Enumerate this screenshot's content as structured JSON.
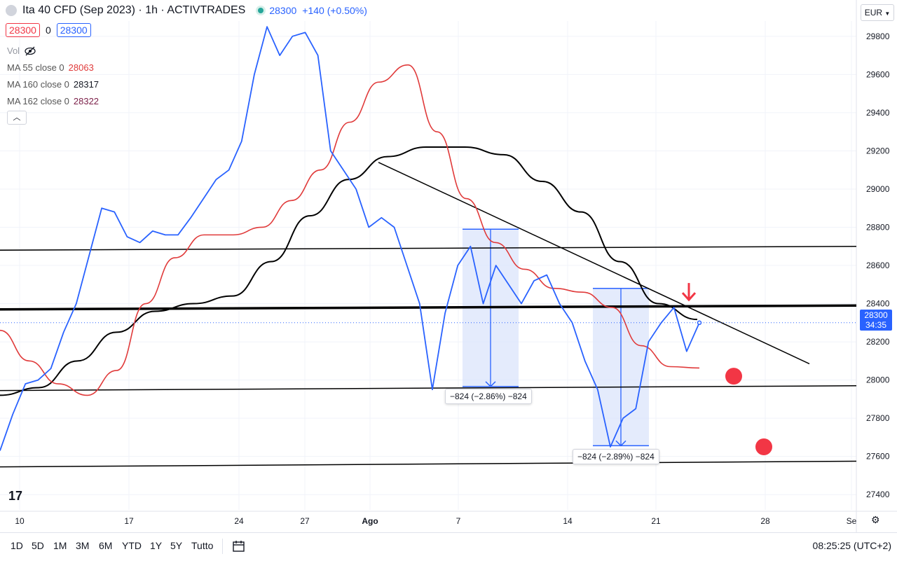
{
  "header": {
    "title": "Ita 40 CFD (Sep 2023) · 1h · ACTIVTRADES",
    "last_price": "28300",
    "change": "+140 (+0.50%)",
    "bid": "28300",
    "spread": "0",
    "ask": "28300"
  },
  "indicators": {
    "vol_label": "Vol",
    "ma55": {
      "label": "MA 55 close 0",
      "value": "28063",
      "color": "#e03a3a"
    },
    "ma160": {
      "label": "MA 160 close 0",
      "value": "28317",
      "color": "#131722"
    },
    "ma162": {
      "label": "MA 162 close 0",
      "value": "28322",
      "color": "#7b1f48"
    }
  },
  "currency": "EUR",
  "price_tag": {
    "price": "28300",
    "countdown": "34:35"
  },
  "measurements": [
    {
      "text": "−824 (−2.86%) −824"
    },
    {
      "text": "−824 (−2.89%) −824"
    }
  ],
  "bottombar": {
    "ranges": [
      "1D",
      "5D",
      "1M",
      "3M",
      "6M",
      "YTD",
      "1Y",
      "5Y",
      "Tutto"
    ],
    "clock": "08:25:25 (UTC+2)"
  },
  "chart_data": {
    "type": "line",
    "x_ticks": [
      "10",
      "17",
      "24",
      "27",
      "Ago",
      "7",
      "14",
      "21",
      "28",
      "Se"
    ],
    "y_ticks": [
      27400,
      27600,
      27800,
      28000,
      28200,
      28400,
      28600,
      28800,
      29000,
      29200,
      29400,
      29600,
      29800
    ],
    "ylim": [
      27320,
      29880
    ],
    "grid": true,
    "colors": {
      "price": "#2962ff",
      "ma55": "#e03a3a",
      "ma160": "#000000",
      "zone": "#dbe4fb",
      "marker": "#f23645"
    },
    "series": [
      {
        "name": "MA 55 close 0",
        "values": [
          28260,
          28100,
          27980,
          27920,
          28050,
          28400,
          28640,
          28760,
          28760,
          28800,
          28940,
          29100,
          29350,
          29560,
          29650,
          29300,
          28950,
          28720,
          28580,
          28480,
          28460,
          28380,
          28180,
          28070,
          28063
        ]
      },
      {
        "name": "MA 160 close 0",
        "values": [
          27920,
          27960,
          28100,
          28250,
          28360,
          28400,
          28440,
          28620,
          28860,
          29050,
          29170,
          29220,
          29220,
          29180,
          29040,
          28880,
          28620,
          28400,
          28317
        ]
      },
      {
        "name": "Price",
        "values": [
          27630,
          27820,
          27980,
          28000,
          28060,
          28250,
          28400,
          28650,
          28900,
          28880,
          28750,
          28720,
          28780,
          28760,
          28760,
          28850,
          28950,
          29050,
          29100,
          29250,
          29600,
          29850,
          29700,
          29800,
          29820,
          29700,
          29200,
          29100,
          29000,
          28800,
          28850,
          28800,
          28600,
          28400,
          27950,
          28350,
          28600,
          28700,
          28400,
          28600,
          28500,
          28400,
          28520,
          28550,
          28400,
          28300,
          28100,
          27950,
          27650,
          27800,
          27850,
          28200,
          28300,
          28380,
          28150,
          28300
        ]
      }
    ]
  }
}
